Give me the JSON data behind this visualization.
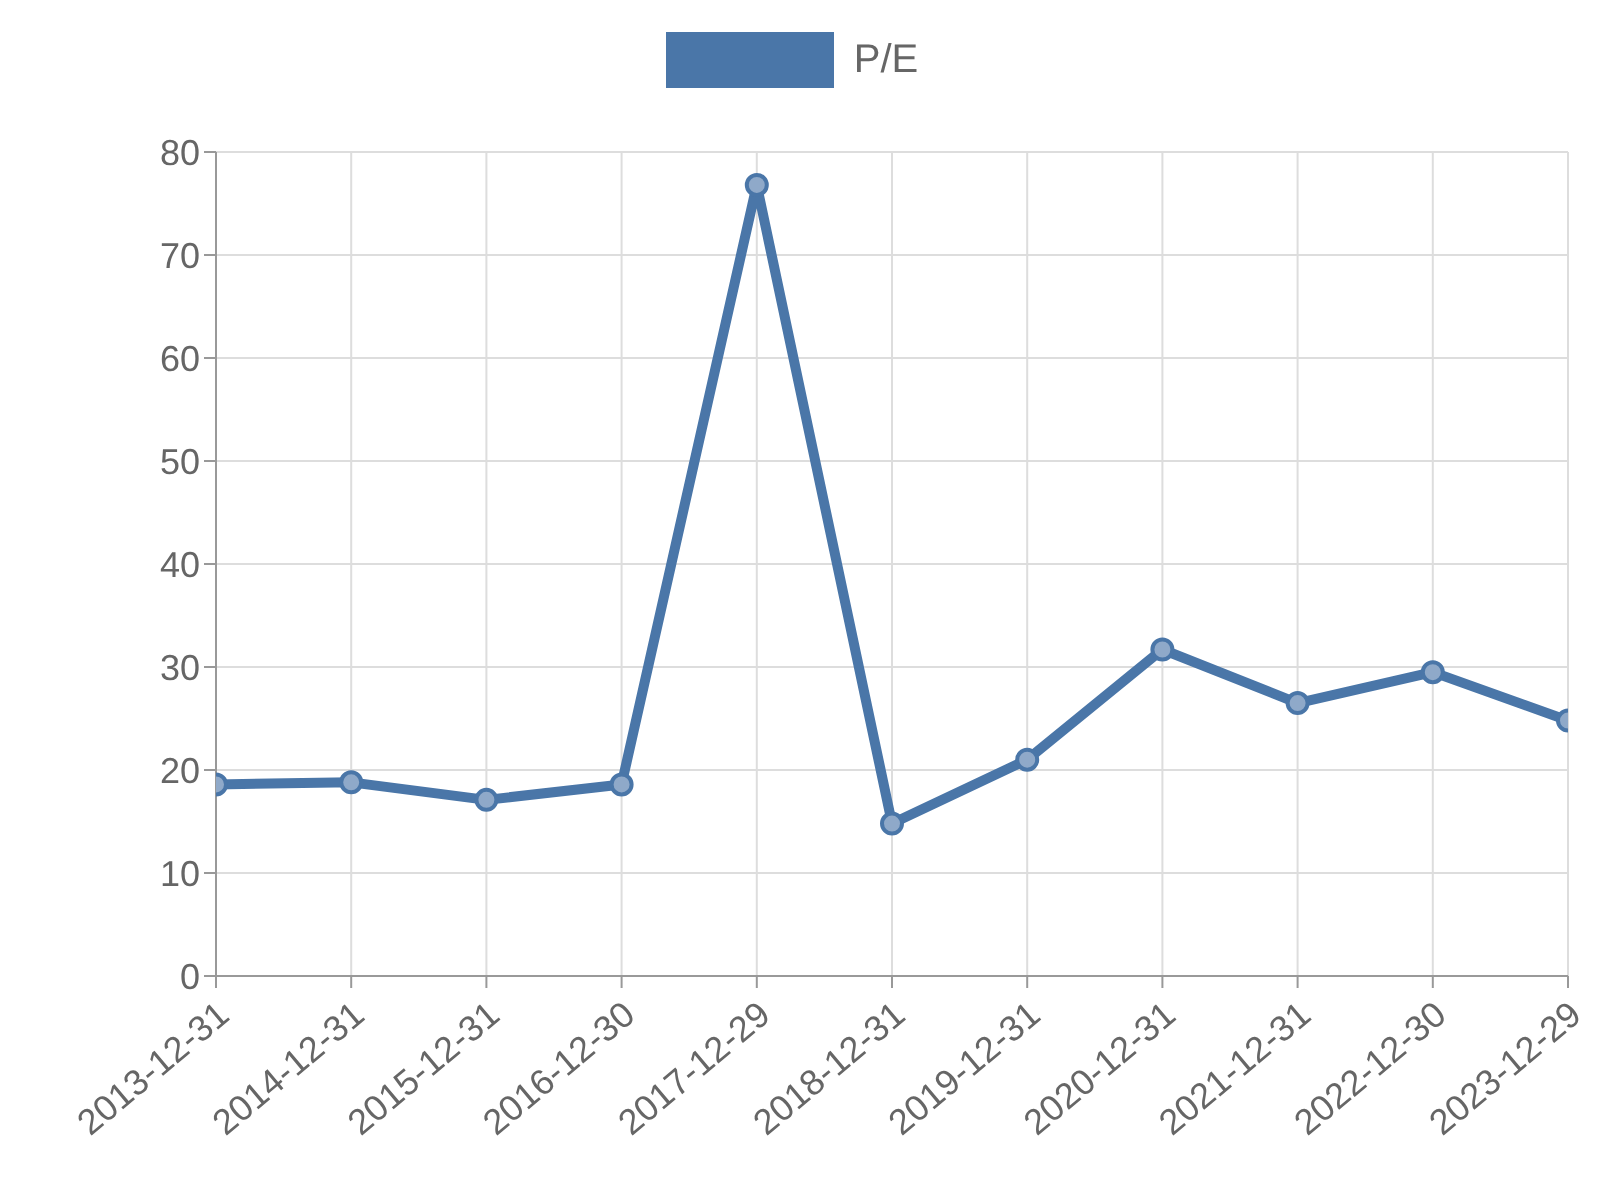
{
  "chart_data": {
    "type": "line",
    "categories": [
      "2013-12-31",
      "2014-12-31",
      "2015-12-31",
      "2016-12-30",
      "2017-12-29",
      "2018-12-31",
      "2019-12-31",
      "2020-12-31",
      "2021-12-31",
      "2022-12-30",
      "2023-12-29"
    ],
    "series": [
      {
        "name": "P/E",
        "color": "#4a76a8",
        "values": [
          18.6,
          18.8,
          17.1,
          18.6,
          76.8,
          14.8,
          21.0,
          31.7,
          26.5,
          29.5,
          24.8
        ]
      }
    ],
    "ylim": [
      0,
      80
    ],
    "yticks": [
      0,
      10,
      20,
      30,
      40,
      50,
      60,
      70,
      80
    ],
    "grid": true,
    "legend": "top",
    "marker": "circle",
    "line_style": "solid"
  }
}
